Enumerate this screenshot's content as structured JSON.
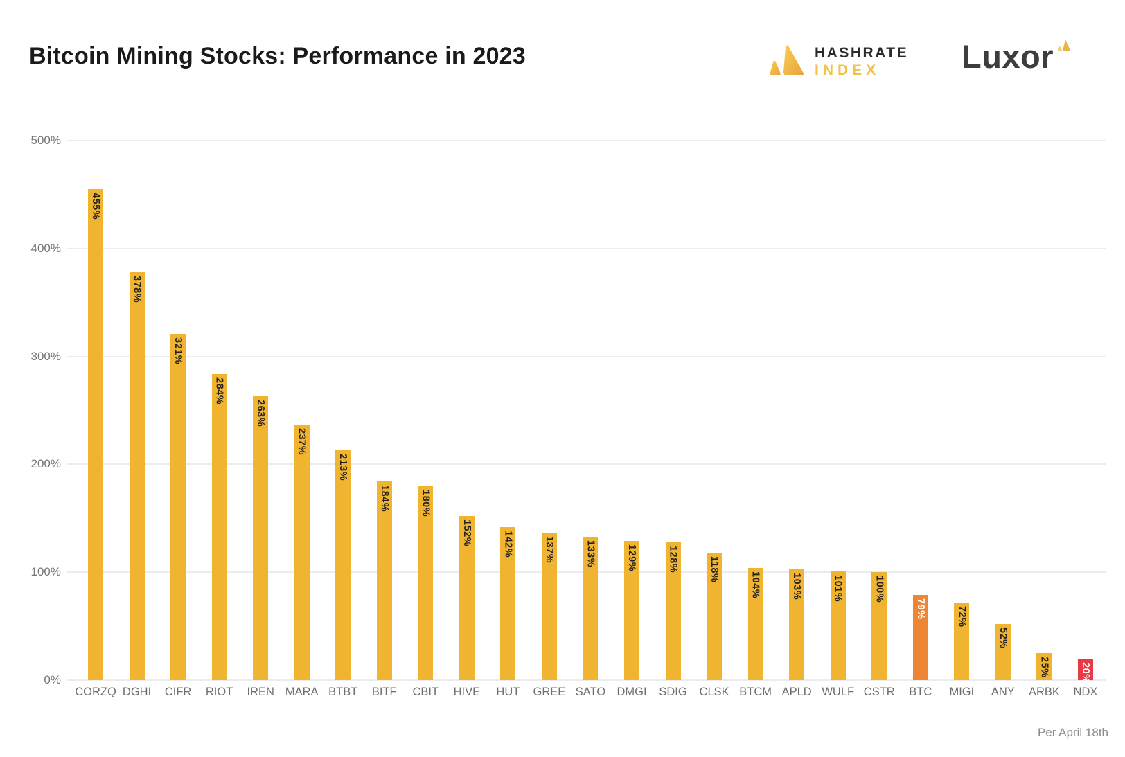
{
  "header": {
    "title": "Bitcoin Mining Stocks: Performance in 2023",
    "hashrate_logo": {
      "line1": "HASHRATE",
      "line2": "INDEX"
    },
    "luxor_logo": "Luxor"
  },
  "footer": {
    "note": "Per April 18th"
  },
  "colors": {
    "bar_default": "#F0B431",
    "bar_btc": "#ED8535",
    "bar_ndx": "#E93B47",
    "value_label_dark": "#232323",
    "value_label_light": "#FFFFFF",
    "gridline": "#ECECEC",
    "axis_text": "#757575",
    "brand_gold": "#F2C149"
  },
  "chart_data": {
    "type": "bar",
    "title": "Bitcoin Mining Stocks: Performance in 2023",
    "categories": [
      "CORZQ",
      "DGHI",
      "CIFR",
      "RIOT",
      "IREN",
      "MARA",
      "BTBT",
      "BITF",
      "CBIT",
      "HIVE",
      "HUT",
      "GREE",
      "SATO",
      "DMGI",
      "SDIG",
      "CLSK",
      "BTCM",
      "APLD",
      "WULF",
      "CSTR",
      "BTC",
      "MIGI",
      "ANY",
      "ARBK",
      "NDX"
    ],
    "values": [
      455,
      378,
      321,
      284,
      263,
      237,
      213,
      184,
      180,
      152,
      142,
      137,
      133,
      129,
      128,
      118,
      104,
      103,
      101,
      100,
      79,
      72,
      52,
      25,
      20
    ],
    "bar_labels": [
      "455%",
      "378%",
      "321%",
      "284%",
      "263%",
      "237%",
      "213%",
      "184%",
      "180%",
      "152%",
      "142%",
      "137%",
      "133%",
      "129%",
      "128%",
      "118%",
      "104%",
      "103%",
      "101%",
      "100%",
      "79%",
      "72%",
      "52%",
      "25%",
      "20%"
    ],
    "highlight": {
      "BTC": "#ED8535",
      "NDX": "#E93B47"
    },
    "xlabel": "",
    "ylabel": "",
    "ylim": [
      0,
      500
    ],
    "y_tick_values": [
      0,
      100,
      200,
      300,
      400,
      500
    ],
    "y_ticks": [
      "0%",
      "100%",
      "200%",
      "300%",
      "400%",
      "500%"
    ],
    "grid": true,
    "legend": false,
    "annotation": "Per April 18th"
  }
}
